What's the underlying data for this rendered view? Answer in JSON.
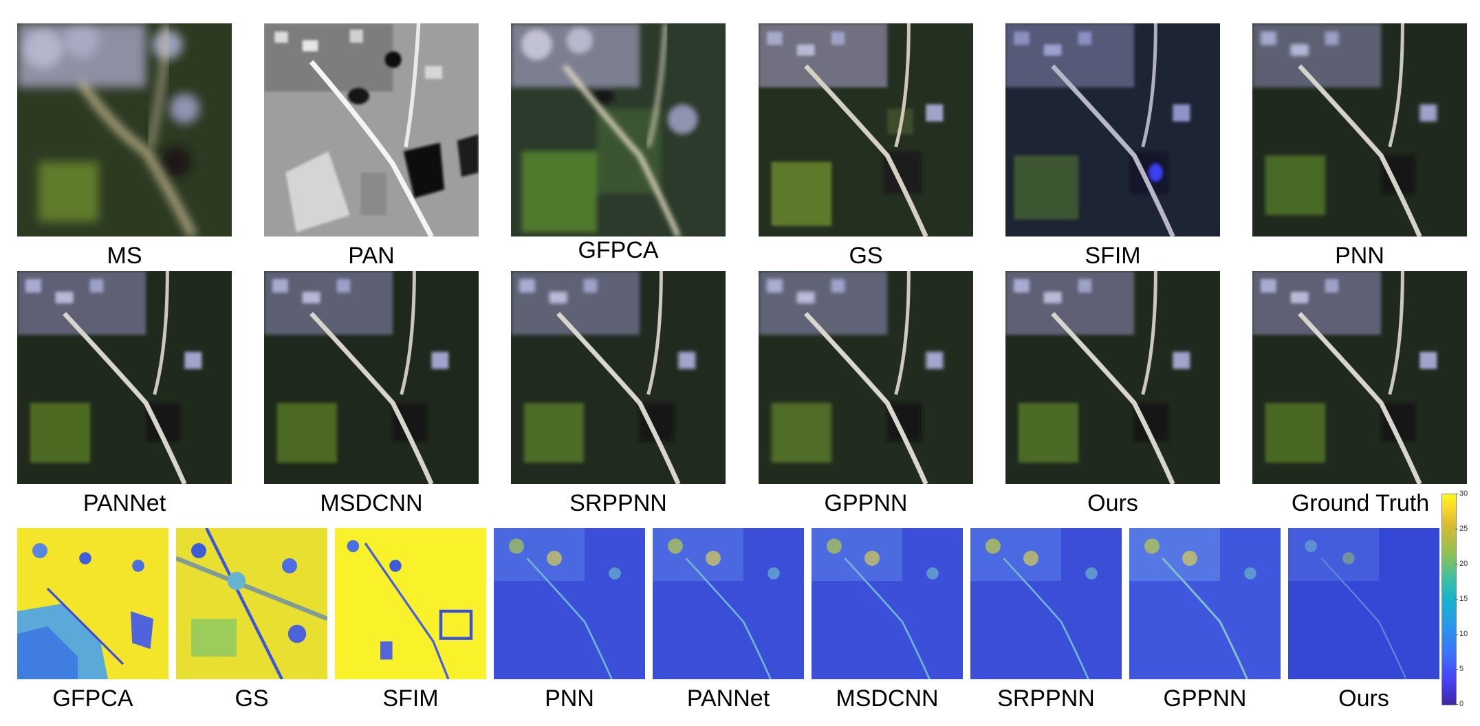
{
  "top_row_labels": [
    "MS",
    "PAN",
    "GFPCA",
    "GS",
    "SFIM",
    "PNN"
  ],
  "middle_row_labels": [
    "PANNet",
    "MSDCNN",
    "SRPPNN",
    "GPPNN",
    "Ours",
    "Ground Truth"
  ],
  "error_map_labels": [
    "GFPCA",
    "GS",
    "SFIM",
    "PNN",
    "PANNet",
    "MSDCNN",
    "SRPPNN",
    "GPPNN",
    "Ours"
  ],
  "colorbar": {
    "ticks": [
      "30",
      "25",
      "20",
      "15",
      "10",
      "5",
      "0"
    ],
    "colors": [
      "#3e26a8",
      "#4743f8",
      "#2797eb",
      "#15b3cf",
      "#8fc052",
      "#fbd52c",
      "#f9fb15"
    ]
  }
}
